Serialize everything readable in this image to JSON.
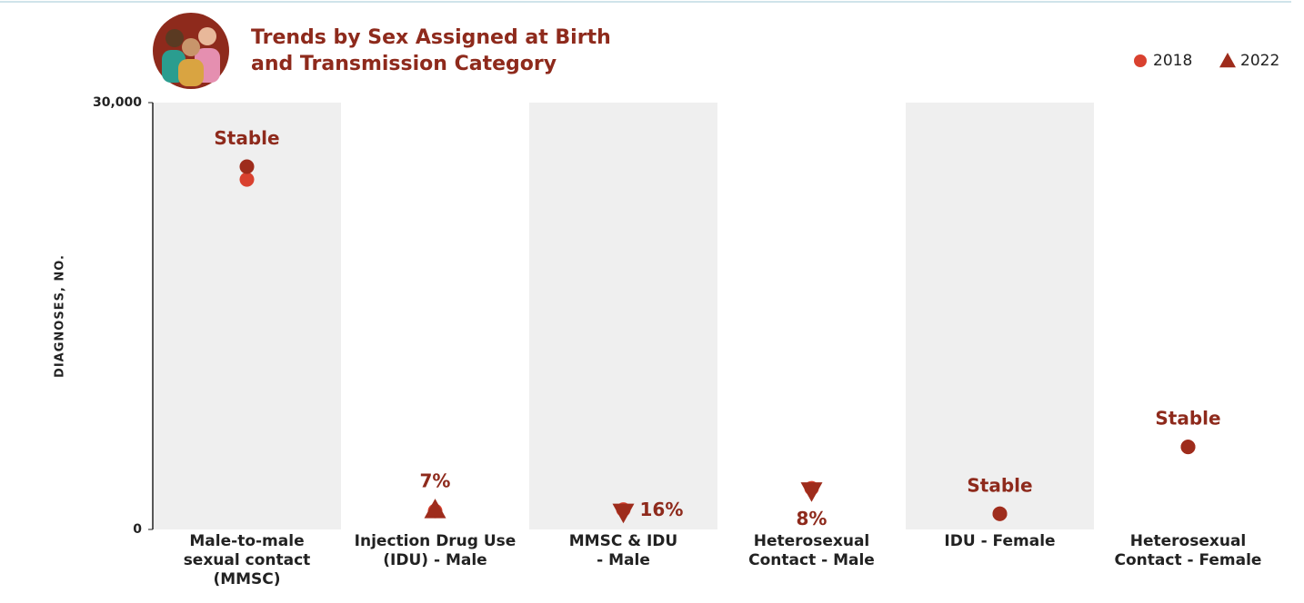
{
  "chart_data": {
    "type": "dot",
    "title": [
      "Trends by Sex Assigned at Birth",
      "and Transmission Category"
    ],
    "y_label": "DIAGNOSES, NO.",
    "categories": [
      [
        "Male-to-male",
        "sexual contact",
        "(MMSC)"
      ],
      [
        "Injection Drug Use",
        "(IDU) - Male"
      ],
      [
        "MMSC & IDU",
        "- Male"
      ],
      [
        "Heterosexual",
        "Contact - Male"
      ],
      [
        "IDU - Female"
      ],
      [
        "Heterosexual",
        "Contact - Female"
      ]
    ],
    "series": [
      {
        "name": "2018",
        "color": "#d9412f",
        "values": [
          24600,
          1300,
          1400,
          2900,
          1100,
          5800
        ]
      },
      {
        "name": "2022",
        "color": "#9e2c1c",
        "values": [
          25500,
          1400,
          1200,
          2700,
          1100,
          5800
        ]
      }
    ],
    "trend_labels": [
      "Stable",
      "7%",
      "16%",
      "8%",
      "Stable",
      "Stable"
    ],
    "trend_direction": [
      "stable",
      "up",
      "down",
      "down",
      "stable",
      "stable"
    ],
    "label_position": [
      "above",
      "above",
      "right",
      "below",
      "above",
      "above"
    ],
    "ylim": [
      0,
      30000
    ],
    "yticks": [
      0,
      {
        "value": 30000,
        "label": "30,000"
      }
    ],
    "legend": "top-right"
  }
}
